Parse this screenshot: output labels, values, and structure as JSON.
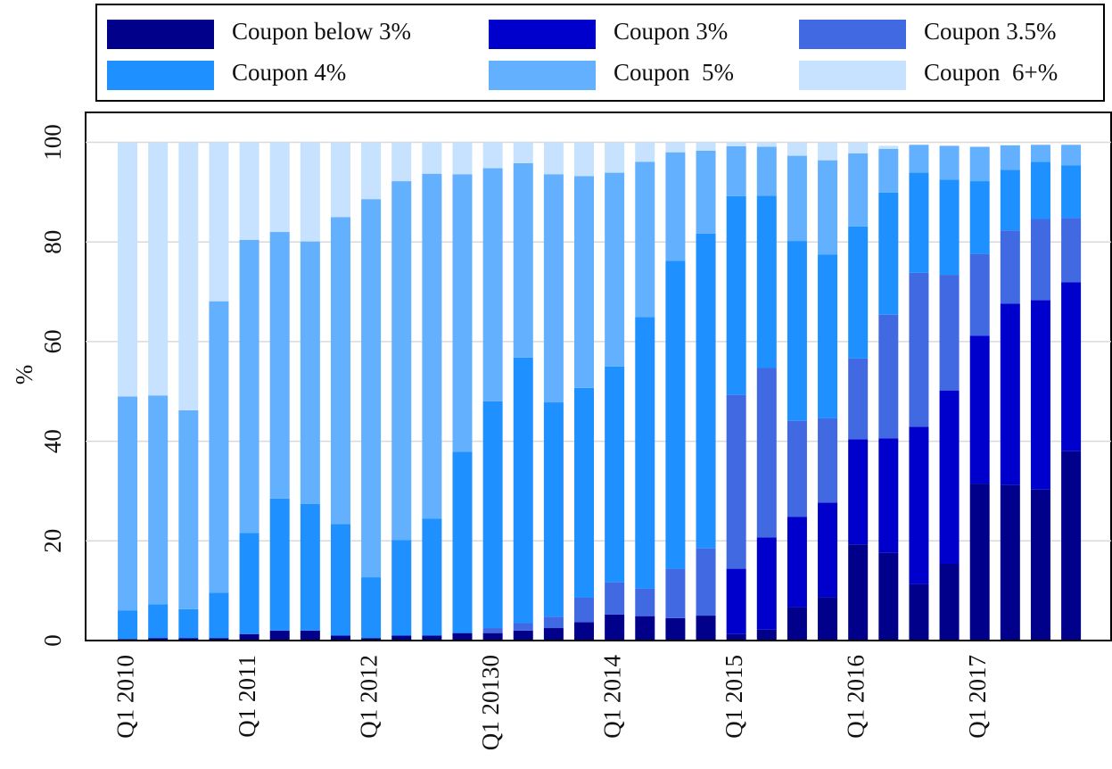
{
  "chart_data": {
    "type": "stacked_bar",
    "ylabel": "%",
    "categories": [
      "Q1 2010",
      null,
      null,
      null,
      "Q1 2011",
      null,
      null,
      null,
      "Q1 2012",
      null,
      null,
      null,
      "Q1 20130",
      null,
      null,
      null,
      "Q1 2014",
      null,
      null,
      null,
      "Q1 2015",
      null,
      null,
      null,
      "Q1 2016",
      null,
      null,
      null,
      "Q1 2017",
      null,
      null,
      null
    ],
    "series": [
      {
        "name": "Coupon below 3%",
        "color": "#00008b",
        "values": [
          0.3,
          0.5,
          0.5,
          0.5,
          1.3,
          2,
          2,
          1,
          0.5,
          1,
          1,
          1.5,
          1.5,
          2,
          2.5,
          3.7,
          5.2,
          4.9,
          4.5,
          5,
          1.3,
          2.2,
          6.7,
          8.7,
          19.3,
          17.6,
          11.3,
          15.4,
          31.5,
          31.3,
          30.3,
          38
        ]
      },
      {
        "name": "Coupon 3%",
        "color": "#0000cd",
        "values": [
          0,
          0,
          0,
          0,
          0,
          0,
          0,
          0,
          0,
          0,
          0,
          0,
          0,
          0,
          0,
          0,
          0,
          0,
          0,
          0,
          13.1,
          18.5,
          18.1,
          19,
          21.1,
          23,
          31.6,
          34.8,
          29.7,
          36.3,
          38,
          33.9
        ]
      },
      {
        "name": "Coupon 3.5%",
        "color": "#4169e1",
        "values": [
          0,
          0,
          0,
          0,
          0,
          0,
          0,
          0,
          0,
          0,
          0,
          0,
          1,
          1.5,
          2.3,
          4.9,
          6.5,
          5.5,
          9.9,
          13.5,
          34.9,
          34,
          19.3,
          16.9,
          16.2,
          24.8,
          30.9,
          23.2,
          16.4,
          14.7,
          16.3,
          12.9
        ]
      },
      {
        "name": "Coupon 4%",
        "color": "#1e90ff",
        "values": [
          5.7,
          6.8,
          5.8,
          9.1,
          20.3,
          26.5,
          25.4,
          22.4,
          12.2,
          19.2,
          23.5,
          36.4,
          45.5,
          53.3,
          43,
          42.1,
          43.3,
          54.5,
          61.8,
          63.2,
          39.9,
          34.6,
          36.1,
          32.9,
          26.5,
          24.5,
          20.1,
          19.1,
          14.6,
          12.2,
          11.5,
          10.6
        ]
      },
      {
        "name": "Coupon  5%",
        "color": "#63b0ff",
        "values": [
          43,
          41.9,
          39.9,
          58.5,
          58.8,
          53.5,
          52.7,
          61.6,
          75.9,
          72,
          69.2,
          55.7,
          46.8,
          39,
          45.8,
          42.5,
          38.9,
          31.2,
          21.8,
          16.6,
          10,
          9.8,
          17.1,
          18.9,
          14.7,
          8.8,
          5.6,
          6.8,
          6.9,
          4.9,
          3.4,
          4.1
        ]
      },
      {
        "name": "Coupon  6+%",
        "color": "#c6e2ff",
        "values": [
          51,
          50.8,
          53.8,
          31.9,
          19.6,
          18,
          19.9,
          15,
          11.4,
          7.8,
          6.3,
          6.4,
          5.2,
          4.2,
          6.4,
          6.8,
          6.1,
          3.9,
          2,
          1.7,
          0.8,
          0.9,
          2.7,
          3.6,
          2.2,
          0.6,
          0,
          0,
          0,
          0,
          0,
          0
        ]
      }
    ],
    "ylim": [
      0,
      106
    ],
    "yticks": [
      0,
      20,
      40,
      60,
      80,
      100
    ],
    "grid": true,
    "legend": "top"
  }
}
